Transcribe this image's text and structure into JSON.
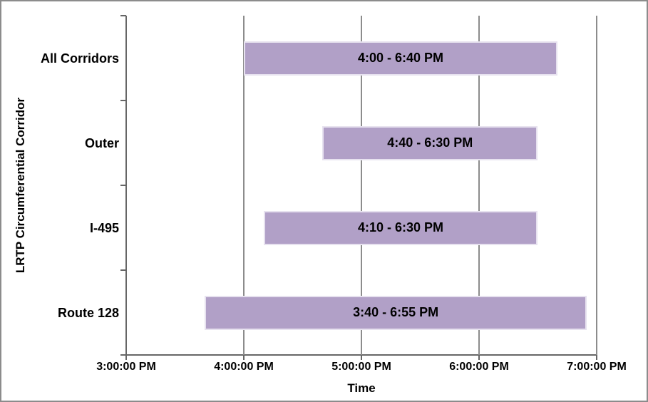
{
  "chart_data": {
    "type": "bar",
    "subtype": "horizontal-floating-range",
    "title": "",
    "xlabel": "Time",
    "ylabel": "LRTP Circumferential Corridor",
    "categories": [
      "All Corridors",
      "Outer",
      "I-495",
      "Route 128"
    ],
    "bars": [
      {
        "category": "All Corridors",
        "start": "4:00 PM",
        "end": "6:40 PM",
        "start_h": 16.0,
        "end_h": 18.6667,
        "label": "4:00 - 6:40 PM"
      },
      {
        "category": "Outer",
        "start": "4:40 PM",
        "end": "6:30 PM",
        "start_h": 16.6667,
        "end_h": 18.5,
        "label": "4:40 - 6:30 PM"
      },
      {
        "category": "I-495",
        "start": "4:10 PM",
        "end": "6:30 PM",
        "start_h": 16.1667,
        "end_h": 18.5,
        "label": "4:10 - 6:30 PM"
      },
      {
        "category": "Route 128",
        "start": "3:40 PM",
        "end": "6:55 PM",
        "start_h": 15.6667,
        "end_h": 18.9167,
        "label": "3:40 - 6:55 PM"
      }
    ],
    "x_axis": {
      "min_h": 15,
      "max_h": 19,
      "tick_interval_h": 1,
      "ticks": [
        {
          "h": 15,
          "label": "3:00:00 PM"
        },
        {
          "h": 16,
          "label": "4:00:00 PM"
        },
        {
          "h": 17,
          "label": "5:00:00 PM"
        },
        {
          "h": 18,
          "label": "6:00:00 PM"
        },
        {
          "h": 19,
          "label": "7:00:00 PM"
        }
      ]
    },
    "grid": "vertical gridlines at each hour tick",
    "legend": "none",
    "colors": {
      "bar_fill": "#B1A0C7",
      "bar_border": "#E7E2EF",
      "gridline": "#8C8C8C",
      "axis_line": "#666666",
      "text": "#000000",
      "background": "#FFFFFF",
      "frame_border": "#8C8C8C"
    }
  }
}
